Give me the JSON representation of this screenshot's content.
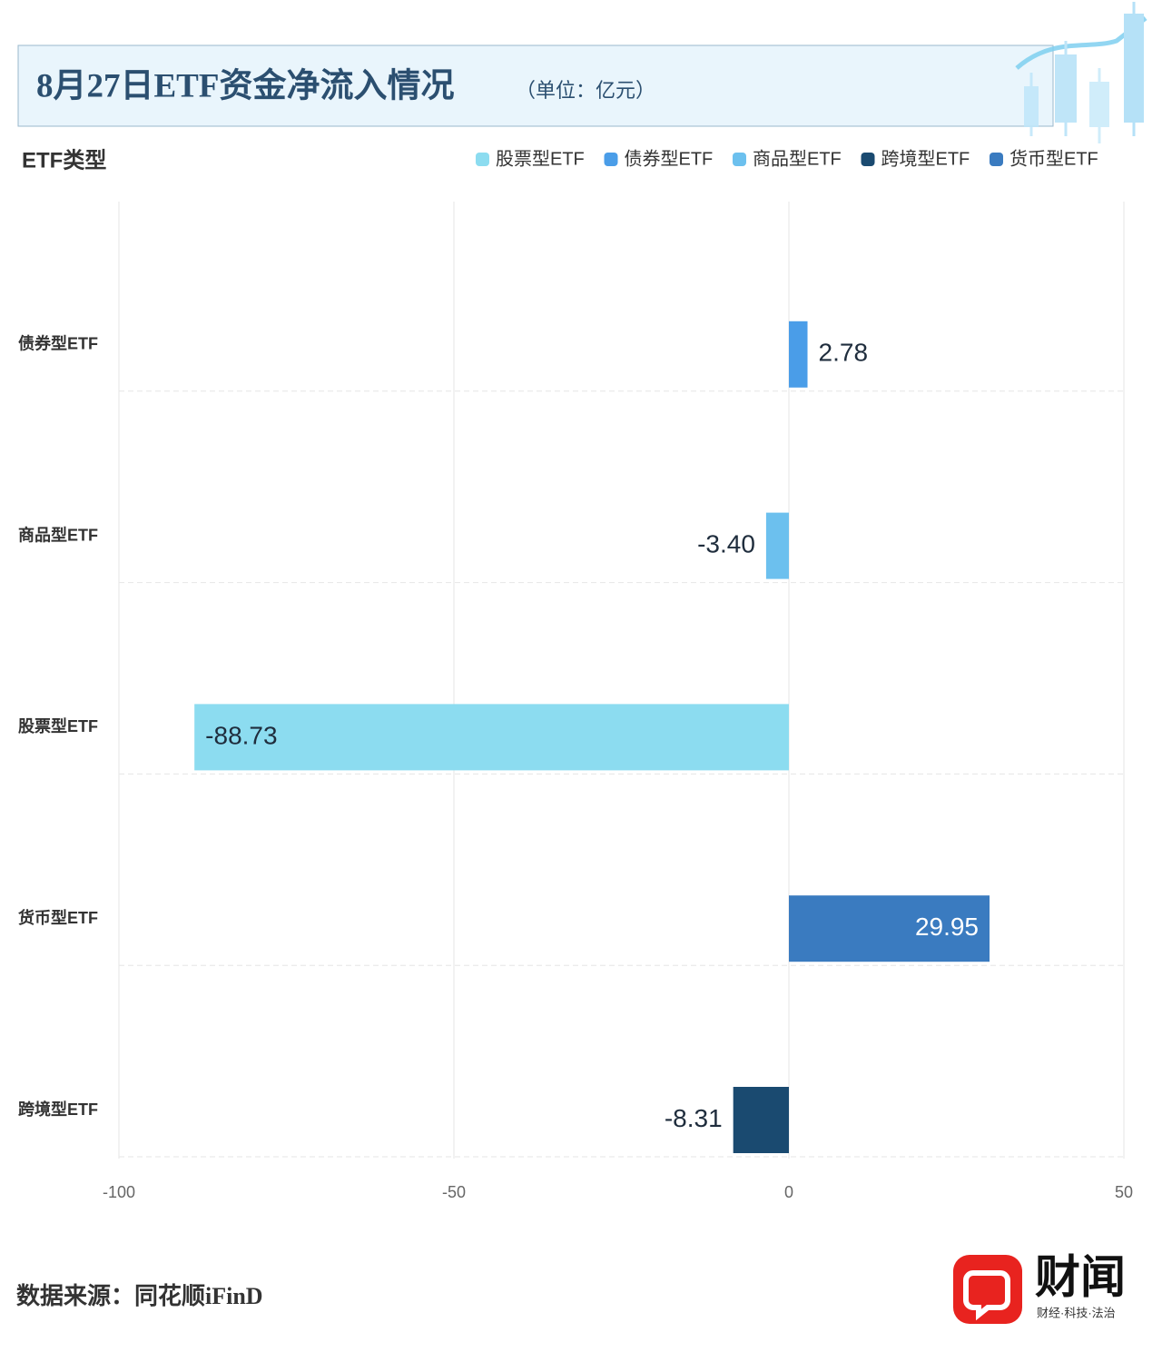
{
  "chart_data": {
    "type": "bar",
    "orientation": "horizontal",
    "title": "8月27日ETF资金净流入情况",
    "subtitle": "（单位：亿元）",
    "y_axis_label": "ETF类型",
    "categories": [
      "债券型ETF",
      "商品型ETF",
      "股票型ETF",
      "货币型ETF",
      "跨境型ETF"
    ],
    "series": [
      {
        "name": "股票型ETF",
        "color": "#8cdcf0",
        "values": [
          null,
          null,
          -88.73,
          null,
          null
        ],
        "value_labels": [
          null,
          null,
          "-88.73",
          null,
          null
        ]
      },
      {
        "name": "债券型ETF",
        "color": "#4a9de8",
        "values": [
          2.78,
          null,
          null,
          null,
          null
        ],
        "value_labels": [
          "2.78",
          null,
          null,
          null,
          null
        ]
      },
      {
        "name": "商品型ETF",
        "color": "#6cc0ee",
        "values": [
          null,
          -3.4,
          null,
          null,
          null
        ],
        "value_labels": [
          null,
          "-3.40",
          null,
          null,
          null
        ]
      },
      {
        "name": "跨境型ETF",
        "color": "#1a4a70",
        "values": [
          null,
          null,
          null,
          null,
          -8.31
        ],
        "value_labels": [
          null,
          null,
          null,
          null,
          "-8.31"
        ]
      },
      {
        "name": "货币型ETF",
        "color": "#3a7bc0",
        "values": [
          null,
          null,
          null,
          29.95,
          null
        ],
        "value_labels": [
          null,
          null,
          null,
          "29.95",
          null
        ]
      }
    ],
    "xlim": [
      -100,
      50
    ],
    "xticks": [
      -100,
      -50,
      0,
      50
    ],
    "grid": true,
    "legend_position": "top-right",
    "source": "数据来源：同花顺iFinD",
    "brand": "财闻",
    "brand_tagline": "财经·科技·法治"
  }
}
